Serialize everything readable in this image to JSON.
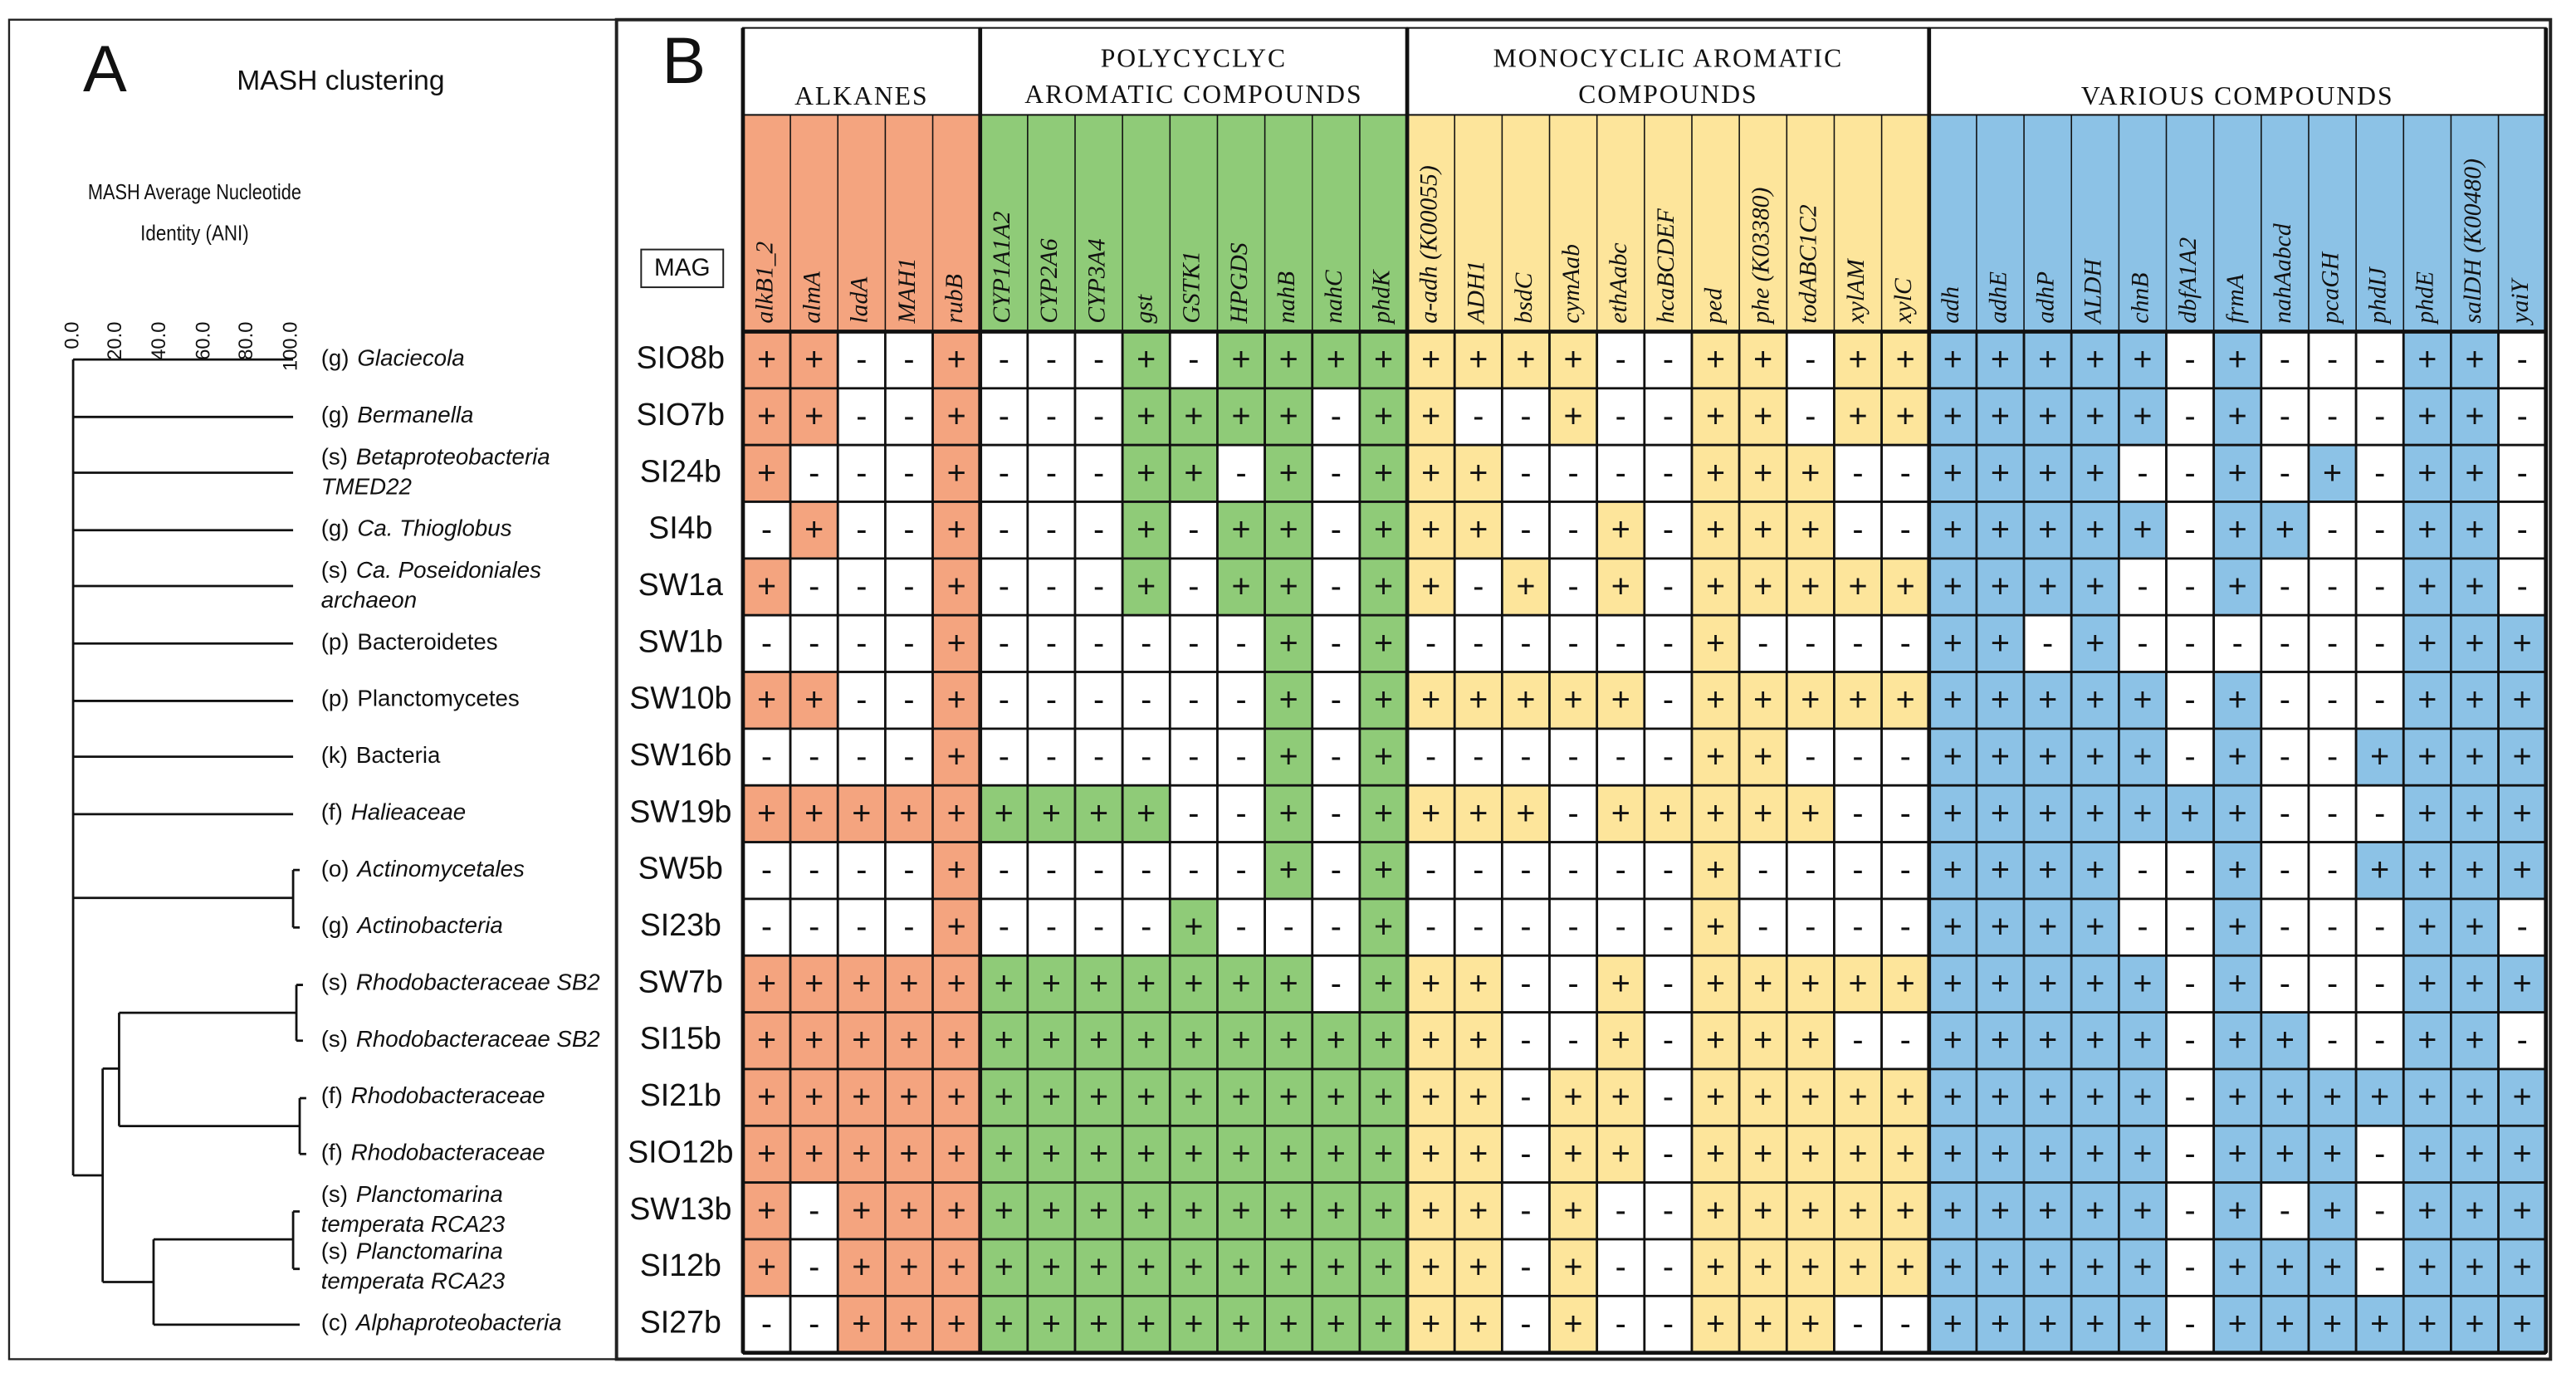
{
  "panel_a": {
    "letter": "A",
    "title": "MASH clustering",
    "axis_title": [
      "MASH Average Nucleotide",
      "Identity (ANI)"
    ],
    "axis_ticks": [
      "0.0",
      "20.0",
      "40.0",
      "60.0",
      "80.0",
      "100.0"
    ],
    "taxa": [
      {
        "rank": "(g)",
        "name": [
          "Glaciecola"
        ],
        "italic": true
      },
      {
        "rank": "(g)",
        "name": [
          "Bermanella"
        ],
        "italic": true
      },
      {
        "rank": "(s)",
        "name": [
          "Betaproteobacteria",
          "TMED22"
        ],
        "italic": true
      },
      {
        "rank": "(g)",
        "name": [
          "Ca. Thioglobus"
        ],
        "italic": true
      },
      {
        "rank": "(s)",
        "name": [
          "Ca. Poseidoniales",
          "archaeon"
        ],
        "italic": true
      },
      {
        "rank": "(p)",
        "name": [
          "Bacteroidetes"
        ],
        "italic": false
      },
      {
        "rank": "(p)",
        "name": [
          "Planctomycetes"
        ],
        "italic": false
      },
      {
        "rank": "(k)",
        "name": [
          "Bacteria"
        ],
        "italic": false
      },
      {
        "rank": "(f)",
        "name": [
          "Halieaceae"
        ],
        "italic": true
      },
      {
        "rank": "(o)",
        "name": [
          "Actinomycetales"
        ],
        "italic": true
      },
      {
        "rank": "(g)",
        "name": [
          "Actinobacteria"
        ],
        "italic": true
      },
      {
        "rank": "(s)",
        "name": [
          "Rhodobacteraceae SB2"
        ],
        "italic": true
      },
      {
        "rank": "(s)",
        "name": [
          "Rhodobacteraceae SB2"
        ],
        "italic": true
      },
      {
        "rank": "(f)",
        "name": [
          "Rhodobacteraceae"
        ],
        "italic": true
      },
      {
        "rank": "(f)",
        "name": [
          "Rhodobacteraceae"
        ],
        "italic": true
      },
      {
        "rank": "(s)",
        "name": [
          "Planctomarina",
          "temperata RCA23"
        ],
        "italic": true
      },
      {
        "rank": "(s)",
        "name": [
          "Planctomarina",
          "temperata RCA23"
        ],
        "italic": true
      },
      {
        "rank": "(c)",
        "name": [
          "Alphaproteobacteria"
        ],
        "italic": true
      }
    ]
  },
  "panel_b": {
    "letter": "B",
    "row_header": "MAG",
    "groups": [
      {
        "title": [
          "ALKANES"
        ],
        "color": "#f4a47f",
        "genes": [
          "alkB1_2",
          "almA",
          "ladA",
          "MAH1",
          "rubB"
        ]
      },
      {
        "title": [
          "POLYCYCLYC",
          "AROMATIC COMPOUNDS"
        ],
        "color": "#8fcb78",
        "genes": [
          "CYP1A1A2",
          "CYP2A6",
          "CYP3A4",
          "gst",
          "GSTK1",
          "HPGDS",
          "nahB",
          "nahC",
          "phdK"
        ]
      },
      {
        "title": [
          "MONOCYCLIC AROMATIC",
          "COMPOUNDS"
        ],
        "color": "#fde59b",
        "genes": [
          "a-adh (K00055)",
          "ADH1",
          "bsdC",
          "cymAab",
          "ethAabc",
          "hcaBCDEF",
          "ped",
          "phe (K03380)",
          "todABC1C2",
          "xylAM",
          "xylC"
        ]
      },
      {
        "title": [
          "VARIOUS COMPOUNDS"
        ],
        "color": "#8cc2e6",
        "genes": [
          "adh",
          "adhE",
          "adhP",
          "ALDH",
          "chnB",
          "dbfA1A2",
          "frmA",
          "nahAabcd",
          "pcaGH",
          "phdIJ",
          "phdE",
          "salDH (K00480)",
          "yaiY"
        ]
      }
    ],
    "rows": [
      {
        "mag": "SIO8b",
        "cells": [
          "+",
          "+",
          "-",
          "-",
          "+",
          "-",
          "-",
          "-",
          "+",
          "-",
          "+",
          "+",
          "+",
          "+",
          "+",
          "+",
          "+",
          "+",
          "-",
          "-",
          "+",
          "+",
          "-",
          "+",
          "+",
          "+",
          "+",
          "+",
          "+",
          "+",
          "-",
          "+",
          "-",
          "-",
          "-",
          "+",
          "+",
          "-"
        ]
      },
      {
        "mag": "SIO7b",
        "cells": [
          "+",
          "+",
          "-",
          "-",
          "+",
          "-",
          "-",
          "-",
          "+",
          "+",
          "+",
          "+",
          "-",
          "+",
          "+",
          "-",
          "-",
          "+",
          "-",
          "-",
          "+",
          "+",
          "-",
          "+",
          "+",
          "+",
          "+",
          "+",
          "+",
          "+",
          "-",
          "+",
          "-",
          "-",
          "-",
          "+",
          "+",
          "-"
        ]
      },
      {
        "mag": "SI24b",
        "cells": [
          "+",
          "-",
          "-",
          "-",
          "+",
          "-",
          "-",
          "-",
          "+",
          "+",
          "-",
          "+",
          "-",
          "+",
          "+",
          "+",
          "-",
          "-",
          "-",
          "-",
          "+",
          "+",
          "+",
          "-",
          "-",
          "+",
          "+",
          "+",
          "+",
          "-",
          "-",
          "+",
          "-",
          "+",
          "-",
          "+",
          "+",
          "-"
        ]
      },
      {
        "mag": "SI4b",
        "cells": [
          "-",
          "+",
          "-",
          "-",
          "+",
          "-",
          "-",
          "-",
          "+",
          "-",
          "+",
          "+",
          "-",
          "+",
          "+",
          "+",
          "-",
          "-",
          "+",
          "-",
          "+",
          "+",
          "+",
          "-",
          "-",
          "+",
          "+",
          "+",
          "+",
          "+",
          "-",
          "+",
          "+",
          "-",
          "-",
          "+",
          "+",
          "-"
        ]
      },
      {
        "mag": "SW1a",
        "cells": [
          "+",
          "-",
          "-",
          "-",
          "+",
          "-",
          "-",
          "-",
          "+",
          "-",
          "+",
          "+",
          "-",
          "+",
          "+",
          "-",
          "+",
          "-",
          "+",
          "-",
          "+",
          "+",
          "+",
          "+",
          "+",
          "+",
          "+",
          "+",
          "+",
          "-",
          "-",
          "+",
          "-",
          "-",
          "-",
          "+",
          "+",
          "-"
        ]
      },
      {
        "mag": "SW1b",
        "cells": [
          "-",
          "-",
          "-",
          "-",
          "+",
          "-",
          "-",
          "-",
          "-",
          "-",
          "-",
          "+",
          "-",
          "+",
          "-",
          "-",
          "-",
          "-",
          "-",
          "-",
          "+",
          "-",
          "-",
          "-",
          "-",
          "+",
          "+",
          "-",
          "+",
          "-",
          "-",
          "-",
          "-",
          "-",
          "-",
          "+",
          "+",
          "+"
        ]
      },
      {
        "mag": "SW10b",
        "cells": [
          "+",
          "+",
          "-",
          "-",
          "+",
          "-",
          "-",
          "-",
          "-",
          "-",
          "-",
          "+",
          "-",
          "+",
          "+",
          "+",
          "+",
          "+",
          "+",
          "-",
          "+",
          "+",
          "+",
          "+",
          "+",
          "+",
          "+",
          "+",
          "+",
          "+",
          "-",
          "+",
          "-",
          "-",
          "-",
          "+",
          "+",
          "+"
        ]
      },
      {
        "mag": "SW16b",
        "cells": [
          "-",
          "-",
          "-",
          "-",
          "+",
          "-",
          "-",
          "-",
          "-",
          "-",
          "-",
          "+",
          "-",
          "+",
          "-",
          "-",
          "-",
          "-",
          "-",
          "-",
          "+",
          "+",
          "-",
          "-",
          "-",
          "+",
          "+",
          "+",
          "+",
          "+",
          "-",
          "+",
          "-",
          "-",
          "+",
          "+",
          "+",
          "+"
        ]
      },
      {
        "mag": "SW19b",
        "cells": [
          "+",
          "+",
          "+",
          "+",
          "+",
          "+",
          "+",
          "+",
          "+",
          "-",
          "-",
          "+",
          "-",
          "+",
          "+",
          "+",
          "+",
          "-",
          "+",
          "+",
          "+",
          "+",
          "+",
          "-",
          "-",
          "+",
          "+",
          "+",
          "+",
          "+",
          "+",
          "+",
          "-",
          "-",
          "-",
          "+",
          "+",
          "+"
        ]
      },
      {
        "mag": "SW5b",
        "cells": [
          "-",
          "-",
          "-",
          "-",
          "+",
          "-",
          "-",
          "-",
          "-",
          "-",
          "-",
          "+",
          "-",
          "+",
          "-",
          "-",
          "-",
          "-",
          "-",
          "-",
          "+",
          "-",
          "-",
          "-",
          "-",
          "+",
          "+",
          "+",
          "+",
          "-",
          "-",
          "+",
          "-",
          "-",
          "+",
          "+",
          "+",
          "+"
        ]
      },
      {
        "mag": "SI23b",
        "cells": [
          "-",
          "-",
          "-",
          "-",
          "+",
          "-",
          "-",
          "-",
          "-",
          "+",
          "-",
          "-",
          "-",
          "+",
          "-",
          "-",
          "-",
          "-",
          "-",
          "-",
          "+",
          "-",
          "-",
          "-",
          "-",
          "+",
          "+",
          "+",
          "+",
          "-",
          "-",
          "+",
          "-",
          "-",
          "-",
          "+",
          "+",
          "-"
        ]
      },
      {
        "mag": "SW7b",
        "cells": [
          "+",
          "+",
          "+",
          "+",
          "+",
          "+",
          "+",
          "+",
          "+",
          "+",
          "+",
          "+",
          "-",
          "+",
          "+",
          "+",
          "-",
          "-",
          "+",
          "-",
          "+",
          "+",
          "+",
          "+",
          "+",
          "+",
          "+",
          "+",
          "+",
          "+",
          "-",
          "+",
          "-",
          "-",
          "-",
          "+",
          "+",
          "+"
        ]
      },
      {
        "mag": "SI15b",
        "cells": [
          "+",
          "+",
          "+",
          "+",
          "+",
          "+",
          "+",
          "+",
          "+",
          "+",
          "+",
          "+",
          "+",
          "+",
          "+",
          "+",
          "-",
          "-",
          "+",
          "-",
          "+",
          "+",
          "+",
          "-",
          "-",
          "+",
          "+",
          "+",
          "+",
          "+",
          "-",
          "+",
          "+",
          "-",
          "-",
          "+",
          "+",
          "-"
        ]
      },
      {
        "mag": "SI21b",
        "cells": [
          "+",
          "+",
          "+",
          "+",
          "+",
          "+",
          "+",
          "+",
          "+",
          "+",
          "+",
          "+",
          "+",
          "+",
          "+",
          "+",
          "-",
          "+",
          "+",
          "-",
          "+",
          "+",
          "+",
          "+",
          "+",
          "+",
          "+",
          "+",
          "+",
          "+",
          "-",
          "+",
          "+",
          "+",
          "+",
          "+",
          "+",
          "+"
        ]
      },
      {
        "mag": "SIO12b",
        "cells": [
          "+",
          "+",
          "+",
          "+",
          "+",
          "+",
          "+",
          "+",
          "+",
          "+",
          "+",
          "+",
          "+",
          "+",
          "+",
          "+",
          "-",
          "+",
          "+",
          "-",
          "+",
          "+",
          "+",
          "+",
          "+",
          "+",
          "+",
          "+",
          "+",
          "+",
          "-",
          "+",
          "+",
          "+",
          "-",
          "+",
          "+",
          "+"
        ]
      },
      {
        "mag": "SW13b",
        "cells": [
          "+",
          "-",
          "+",
          "+",
          "+",
          "+",
          "+",
          "+",
          "+",
          "+",
          "+",
          "+",
          "+",
          "+",
          "+",
          "+",
          "-",
          "+",
          "-",
          "-",
          "+",
          "+",
          "+",
          "+",
          "+",
          "+",
          "+",
          "+",
          "+",
          "+",
          "-",
          "+",
          "-",
          "+",
          "-",
          "+",
          "+",
          "+"
        ]
      },
      {
        "mag": "SI12b",
        "cells": [
          "+",
          "-",
          "+",
          "+",
          "+",
          "+",
          "+",
          "+",
          "+",
          "+",
          "+",
          "+",
          "+",
          "+",
          "+",
          "+",
          "-",
          "+",
          "-",
          "-",
          "+",
          "+",
          "+",
          "+",
          "+",
          "+",
          "+",
          "+",
          "+",
          "+",
          "-",
          "+",
          "+",
          "+",
          "-",
          "+",
          "+",
          "+"
        ]
      },
      {
        "mag": "SI27b",
        "cells": [
          "-",
          "-",
          "+",
          "+",
          "+",
          "+",
          "+",
          "+",
          "+",
          "+",
          "+",
          "+",
          "+",
          "+",
          "+",
          "+",
          "-",
          "+",
          "-",
          "-",
          "+",
          "+",
          "+",
          "-",
          "-",
          "+",
          "+",
          "+",
          "+",
          "+",
          "-",
          "+",
          "+",
          "+",
          "+",
          "+",
          "+",
          "+"
        ]
      }
    ]
  }
}
